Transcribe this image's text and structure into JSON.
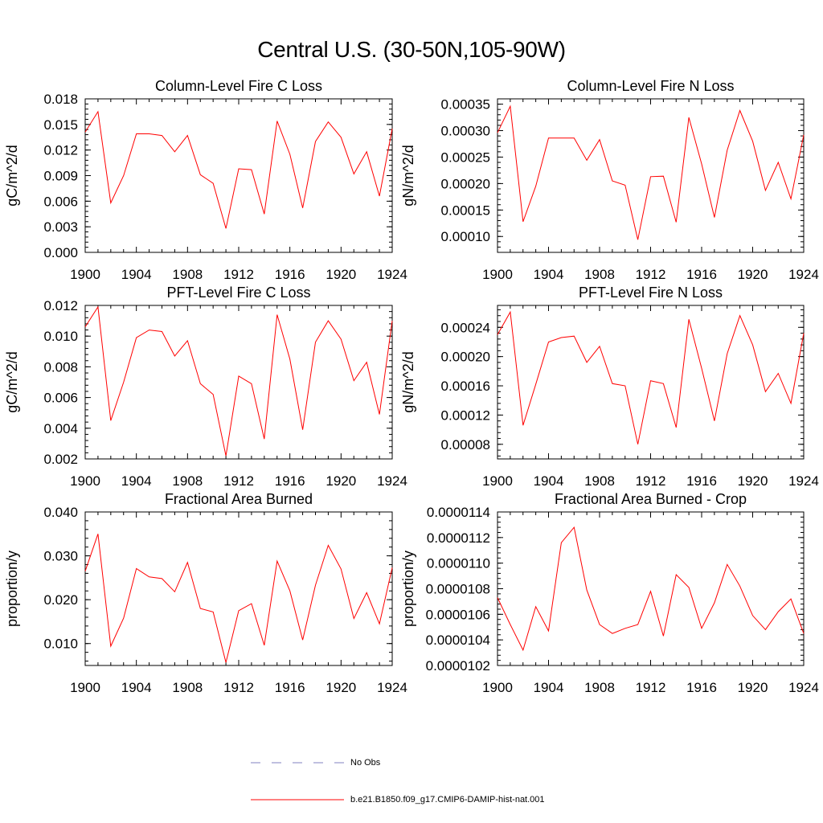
{
  "page_title": "Central U.S. (30-50N,105-90W)",
  "colors": {
    "series": "#ff0000",
    "obs": "#8080c0",
    "axis": "#000000"
  },
  "legend": {
    "obs_label": "No Obs",
    "model_label": "b.e21.B1850.f09_g17.CMIP6-DAMIP-hist-nat.001"
  },
  "chart_data": [
    {
      "type": "line",
      "title": "Column-Level Fire C Loss",
      "ylabel": "gC/m^2/d",
      "xlim": [
        1900,
        1924
      ],
      "ylim": [
        0.0,
        0.018
      ],
      "xticks": [
        1900,
        1904,
        1908,
        1912,
        1916,
        1920,
        1924
      ],
      "yticks": [
        0.0,
        0.003,
        0.006,
        0.009,
        0.012,
        0.015,
        0.018
      ],
      "ytick_labels": [
        "0.000",
        "0.003",
        "0.006",
        "0.009",
        "0.012",
        "0.015",
        "0.018"
      ],
      "x": [
        1900,
        1901,
        1902,
        1903,
        1904,
        1905,
        1906,
        1907,
        1908,
        1909,
        1910,
        1911,
        1912,
        1913,
        1914,
        1915,
        1916,
        1917,
        1918,
        1919,
        1920,
        1921,
        1922,
        1923,
        1924
      ],
      "series": [
        {
          "values": [
            0.0141,
            0.0165,
            0.0058,
            0.009,
            0.0139,
            0.0139,
            0.0137,
            0.0118,
            0.0137,
            0.0091,
            0.0081,
            0.0028,
            0.0098,
            0.0097,
            0.0045,
            0.0154,
            0.0115,
            0.0052,
            0.013,
            0.0153,
            0.0135,
            0.0092,
            0.0118,
            0.0066,
            0.0145
          ]
        }
      ]
    },
    {
      "type": "line",
      "title": "Column-Level Fire N Loss",
      "ylabel": "gN/m^2/d",
      "xlim": [
        1900,
        1924
      ],
      "ylim": [
        7e-05,
        0.00036
      ],
      "xticks": [
        1900,
        1904,
        1908,
        1912,
        1916,
        1920,
        1924
      ],
      "yticks": [
        0.0001,
        0.00015,
        0.0002,
        0.00025,
        0.0003,
        0.00035
      ],
      "ytick_labels": [
        "0.00010",
        "0.00015",
        "0.00020",
        "0.00025",
        "0.00030",
        "0.00035"
      ],
      "x": [
        1900,
        1901,
        1902,
        1903,
        1904,
        1905,
        1906,
        1907,
        1908,
        1909,
        1910,
        1911,
        1912,
        1913,
        1914,
        1915,
        1916,
        1917,
        1918,
        1919,
        1920,
        1921,
        1922,
        1923,
        1924
      ],
      "series": [
        {
          "values": [
            0.000296,
            0.000346,
            0.000128,
            0.000195,
            0.000286,
            0.000286,
            0.000286,
            0.000244,
            0.000283,
            0.000205,
            0.000197,
            9.4e-05,
            0.000213,
            0.000214,
            0.000127,
            0.000325,
            0.000237,
            0.000136,
            0.000263,
            0.000338,
            0.00028,
            0.000187,
            0.00024,
            0.000171,
            0.000292
          ]
        }
      ]
    },
    {
      "type": "line",
      "title": "PFT-Level Fire C Loss",
      "ylabel": "gC/m^2/d",
      "xlim": [
        1900,
        1924
      ],
      "ylim": [
        0.002,
        0.012
      ],
      "xticks": [
        1900,
        1904,
        1908,
        1912,
        1916,
        1920,
        1924
      ],
      "yticks": [
        0.002,
        0.004,
        0.006,
        0.008,
        0.01,
        0.012
      ],
      "ytick_labels": [
        "0.002",
        "0.004",
        "0.006",
        "0.008",
        "0.010",
        "0.012"
      ],
      "x": [
        1900,
        1901,
        1902,
        1903,
        1904,
        1905,
        1906,
        1907,
        1908,
        1909,
        1910,
        1911,
        1912,
        1913,
        1914,
        1915,
        1916,
        1917,
        1918,
        1919,
        1920,
        1921,
        1922,
        1923,
        1924
      ],
      "series": [
        {
          "values": [
            0.0106,
            0.0119,
            0.0045,
            0.007,
            0.0099,
            0.0104,
            0.0103,
            0.0087,
            0.0097,
            0.0069,
            0.0062,
            0.0022,
            0.0074,
            0.0069,
            0.0033,
            0.0114,
            0.0085,
            0.0039,
            0.0096,
            0.011,
            0.0098,
            0.0071,
            0.0083,
            0.0049,
            0.011
          ]
        }
      ]
    },
    {
      "type": "line",
      "title": "PFT-Level Fire N Loss",
      "ylabel": "gN/m^2/d",
      "xlim": [
        1900,
        1924
      ],
      "ylim": [
        6e-05,
        0.00027
      ],
      "xticks": [
        1900,
        1904,
        1908,
        1912,
        1916,
        1920,
        1924
      ],
      "yticks": [
        8e-05,
        0.00012,
        0.00016,
        0.0002,
        0.00024
      ],
      "ytick_labels": [
        "0.00008",
        "0.00012",
        "0.00016",
        "0.00020",
        "0.00024"
      ],
      "x": [
        1900,
        1901,
        1902,
        1903,
        1904,
        1905,
        1906,
        1907,
        1908,
        1909,
        1910,
        1911,
        1912,
        1913,
        1914,
        1915,
        1916,
        1917,
        1918,
        1919,
        1920,
        1921,
        1922,
        1923,
        1924
      ],
      "series": [
        {
          "values": [
            0.00023,
            0.000261,
            0.000106,
            0.000162,
            0.00022,
            0.000226,
            0.000228,
            0.000192,
            0.000214,
            0.000163,
            0.00016,
            8e-05,
            0.000167,
            0.000163,
            0.000103,
            0.000251,
            0.000184,
            0.000112,
            0.000204,
            0.000256,
            0.000216,
            0.000152,
            0.000177,
            0.000136,
            0.000232
          ]
        }
      ]
    },
    {
      "type": "line",
      "title": "Fractional Area Burned",
      "ylabel": "proportion/y",
      "xlim": [
        1900,
        1924
      ],
      "ylim": [
        0.005,
        0.04
      ],
      "xticks": [
        1900,
        1904,
        1908,
        1912,
        1916,
        1920,
        1924
      ],
      "yticks": [
        0.01,
        0.02,
        0.03,
        0.04
      ],
      "ytick_labels": [
        "0.010",
        "0.020",
        "0.030",
        "0.040"
      ],
      "x": [
        1900,
        1901,
        1902,
        1903,
        1904,
        1905,
        1906,
        1907,
        1908,
        1909,
        1910,
        1911,
        1912,
        1913,
        1914,
        1915,
        1916,
        1917,
        1918,
        1919,
        1920,
        1921,
        1922,
        1923,
        1924
      ],
      "series": [
        {
          "values": [
            0.0265,
            0.035,
            0.0094,
            0.0158,
            0.0271,
            0.0252,
            0.0248,
            0.0218,
            0.0285,
            0.018,
            0.0172,
            0.0057,
            0.0175,
            0.0191,
            0.0096,
            0.0288,
            0.022,
            0.0108,
            0.0233,
            0.0324,
            0.027,
            0.0157,
            0.0216,
            0.0145,
            0.0273
          ]
        }
      ]
    },
    {
      "type": "line",
      "title": "Fractional Area Burned - Crop",
      "ylabel": "proportion/y",
      "xlim": [
        1900,
        1924
      ],
      "ylim": [
        1.02e-05,
        1.14e-05
      ],
      "xticks": [
        1900,
        1904,
        1908,
        1912,
        1916,
        1920,
        1924
      ],
      "yticks": [
        1.02e-05,
        1.04e-05,
        1.06e-05,
        1.08e-05,
        1.1e-05,
        1.12e-05,
        1.14e-05
      ],
      "ytick_labels": [
        "0.0000102",
        "0.0000104",
        "0.0000106",
        "0.0000108",
        "0.0000110",
        "0.0000112",
        "0.0000114"
      ],
      "x": [
        1900,
        1901,
        1902,
        1903,
        1904,
        1905,
        1906,
        1907,
        1908,
        1909,
        1910,
        1911,
        1912,
        1913,
        1914,
        1915,
        1916,
        1917,
        1918,
        1919,
        1920,
        1921,
        1922,
        1923,
        1924
      ],
      "series": [
        {
          "values": [
            1.073e-05,
            1.052e-05,
            1.032e-05,
            1.066e-05,
            1.047e-05,
            1.116e-05,
            1.128e-05,
            1.079e-05,
            1.052e-05,
            1.045e-05,
            1.049e-05,
            1.052e-05,
            1.078e-05,
            1.043e-05,
            1.091e-05,
            1.081e-05,
            1.049e-05,
            1.069e-05,
            1.099e-05,
            1.082e-05,
            1.059e-05,
            1.048e-05,
            1.062e-05,
            1.072e-05,
            1.045e-05
          ]
        }
      ]
    }
  ]
}
